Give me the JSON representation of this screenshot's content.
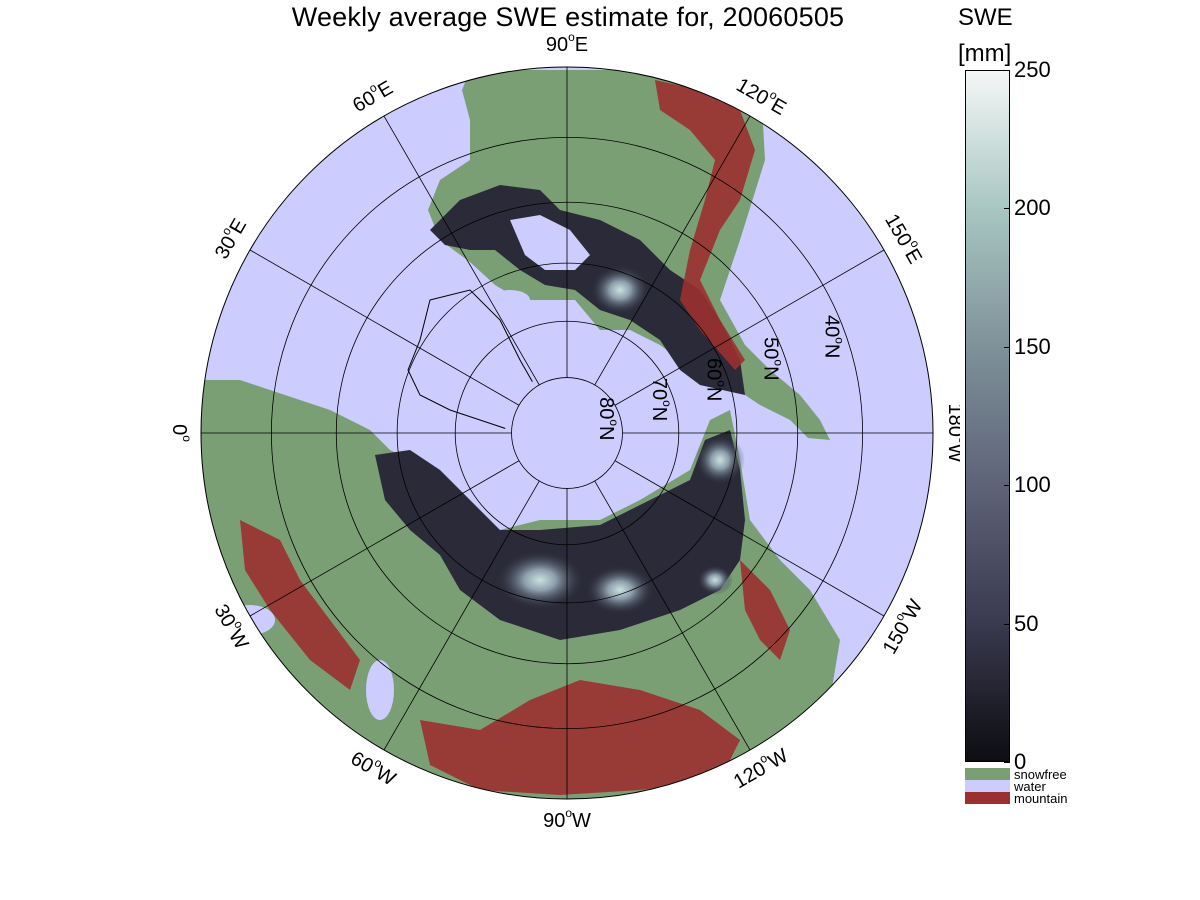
{
  "title": "Weekly average SWE estimate for, 20060505",
  "colorbar": {
    "title_line1": "SWE",
    "title_line2": "[mm]",
    "ticks": [
      "0",
      "50",
      "100",
      "150",
      "200",
      "250"
    ],
    "range": [
      0,
      250
    ],
    "colors": [
      "#0d0d12",
      "#3a3a50",
      "#5e6378",
      "#7e9199",
      "#a8c6c2",
      "#f4f7f6"
    ]
  },
  "legend": [
    {
      "label": "snowfree",
      "color": "#7a9f74"
    },
    {
      "label": "water",
      "color": "#ccccff"
    },
    {
      "label": "mountain",
      "color": "#9b3030"
    }
  ],
  "map": {
    "projection": "north polar stereographic",
    "ocean_color": "#ccccff",
    "land_color": "#7a9f74",
    "mountain_color": "#9b3030",
    "longitude_labels": [
      {
        "text": "90",
        "suffix": "W",
        "lon": -90
      },
      {
        "text": "120",
        "suffix": "W",
        "lon": -120
      },
      {
        "text": "150",
        "suffix": "W",
        "lon": -150
      },
      {
        "text": "180",
        "suffix": "W",
        "lon": 180
      },
      {
        "text": "150",
        "suffix": "E",
        "lon": 150
      },
      {
        "text": "120",
        "suffix": "E",
        "lon": 120
      },
      {
        "text": "90",
        "suffix": "E",
        "lon": 90
      },
      {
        "text": "60",
        "suffix": "E",
        "lon": 60
      },
      {
        "text": "30",
        "suffix": "E",
        "lon": 30
      },
      {
        "text": "0",
        "suffix": "",
        "lon": 0
      },
      {
        "text": "30",
        "suffix": "W",
        "lon": -30
      },
      {
        "text": "60",
        "suffix": "W",
        "lon": -60
      }
    ],
    "latitude_labels": [
      {
        "text": "80",
        "suffix": "N",
        "lat": 80
      },
      {
        "text": "70",
        "suffix": "N",
        "lat": 70
      },
      {
        "text": "60",
        "suffix": "N",
        "lat": 60
      },
      {
        "text": "50",
        "suffix": "N",
        "lat": 50
      },
      {
        "text": "40",
        "suffix": "N",
        "lat": 40
      }
    ],
    "latitude_circles": [
      80,
      70,
      60,
      50,
      40
    ],
    "southern_limit_lat": 30
  }
}
